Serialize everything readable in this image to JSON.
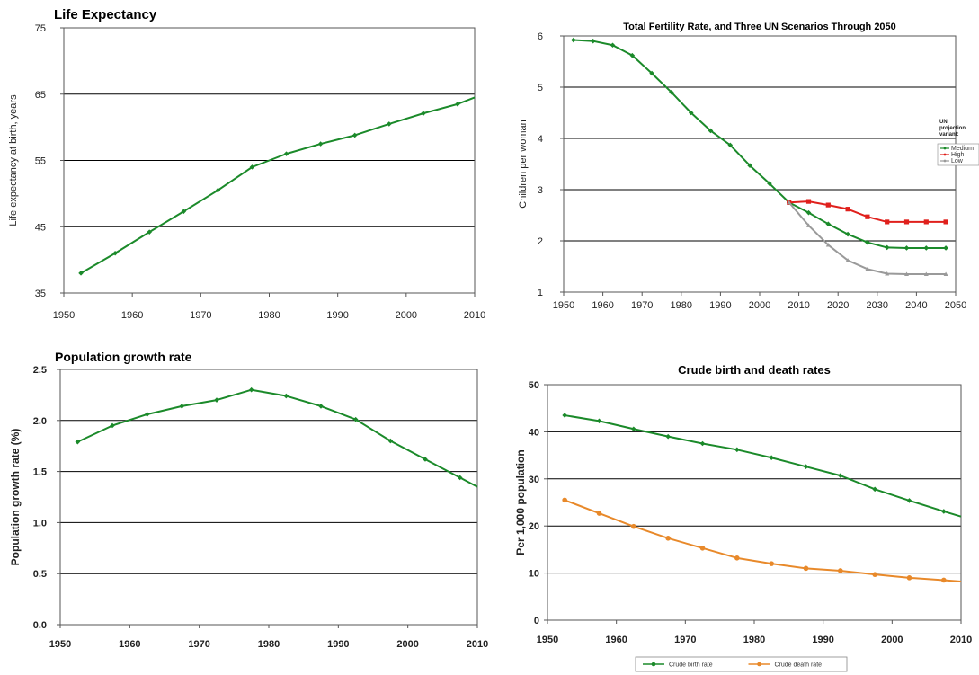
{
  "colors": {
    "green": "#1b8a2a",
    "red": "#e0201c",
    "gray": "#9a9a9a",
    "orange": "#e8892a",
    "gridline": "#000000",
    "frame": "#555555"
  },
  "chart_data": [
    {
      "type": "line",
      "title": "Life Expectancy",
      "xlabel": "",
      "ylabel": "Life expectancy at birth, years",
      "xlim": [
        1950,
        2010
      ],
      "ylim": [
        35,
        75
      ],
      "x_ticks": [
        "1950",
        "1960",
        "1970",
        "1980",
        "1990",
        "2000",
        "2010"
      ],
      "y_ticks": [
        "35",
        "45",
        "55",
        "65",
        "75"
      ],
      "grid": "horizontal",
      "series": [
        {
          "color": "#1b8a2a",
          "points": [
            [
              1952.5,
              38
            ],
            [
              1957.5,
              41
            ],
            [
              1962.5,
              44.2
            ],
            [
              1967.5,
              47.3
            ],
            [
              1972.5,
              50.5
            ],
            [
              1977.5,
              54
            ],
            [
              1982.5,
              56
            ],
            [
              1987.5,
              57.5
            ],
            [
              1992.5,
              58.8
            ],
            [
              1997.5,
              60.5
            ],
            [
              2002.5,
              62.1
            ],
            [
              2007.5,
              63.5
            ],
            [
              2010,
              64.5
            ]
          ],
          "markers": 12
        }
      ]
    },
    {
      "type": "line",
      "title": "Total Fertility Rate, and Three UN Scenarios Through 2050",
      "xlabel": "",
      "ylabel": "Children per woman",
      "xlim": [
        1950,
        2050
      ],
      "ylim": [
        1,
        6
      ],
      "x_ticks": [
        "1950",
        "1960",
        "1970",
        "1980",
        "1990",
        "2000",
        "2010",
        "2020",
        "2030",
        "2040",
        "2050"
      ],
      "y_ticks": [
        "1",
        "2",
        "3",
        "4",
        "5",
        "6"
      ],
      "grid": "horizontal",
      "legend_title": "UN projection variant:",
      "legend": "right",
      "series": [
        {
          "name": "Medium",
          "color": "#1b8a2a",
          "points": [
            [
              1952.5,
              5.92
            ],
            [
              1957.5,
              5.9
            ],
            [
              1962.5,
              5.82
            ],
            [
              1967.5,
              5.62
            ],
            [
              1972.5,
              5.27
            ],
            [
              1977.5,
              4.9
            ],
            [
              1982.5,
              4.5
            ],
            [
              1987.5,
              4.15
            ],
            [
              1992.5,
              3.87
            ],
            [
              1997.5,
              3.47
            ],
            [
              2002.5,
              3.12
            ],
            [
              2007.5,
              2.75
            ],
            [
              2012.5,
              2.55
            ],
            [
              2017.5,
              2.33
            ],
            [
              2022.5,
              2.13
            ],
            [
              2027.5,
              1.97
            ],
            [
              2032.5,
              1.87
            ],
            [
              2037.5,
              1.86
            ],
            [
              2042.5,
              1.86
            ],
            [
              2047.5,
              1.86
            ]
          ],
          "markers": 20
        },
        {
          "name": "High",
          "color": "#e0201c",
          "points": [
            [
              2007.5,
              2.75
            ],
            [
              2012.5,
              2.77
            ],
            [
              2017.5,
              2.7
            ],
            [
              2022.5,
              2.62
            ],
            [
              2027.5,
              2.47
            ],
            [
              2032.5,
              2.37
            ],
            [
              2037.5,
              2.37
            ],
            [
              2042.5,
              2.37
            ],
            [
              2047.5,
              2.37
            ]
          ],
          "markers": 9
        },
        {
          "name": "Low",
          "color": "#9a9a9a",
          "points": [
            [
              2007.5,
              2.75
            ],
            [
              2012.5,
              2.3
            ],
            [
              2017.5,
              1.92
            ],
            [
              2022.5,
              1.62
            ],
            [
              2027.5,
              1.45
            ],
            [
              2032.5,
              1.36
            ],
            [
              2037.5,
              1.35
            ],
            [
              2042.5,
              1.35
            ],
            [
              2047.5,
              1.35
            ]
          ],
          "markers": 9
        }
      ]
    },
    {
      "type": "line",
      "title": "Population growth rate",
      "xlabel": "",
      "ylabel": "Population growth rate (%)",
      "xlim": [
        1950,
        2010
      ],
      "ylim": [
        0,
        2.5
      ],
      "x_ticks": [
        "1950",
        "1960",
        "1970",
        "1980",
        "1990",
        "2000",
        "2010"
      ],
      "y_ticks": [
        "0.0",
        "0.5",
        "1.0",
        "1.5",
        "2.0",
        "2.5"
      ],
      "grid": "horizontal",
      "series": [
        {
          "color": "#1b8a2a",
          "points": [
            [
              1952.5,
              1.79
            ],
            [
              1957.5,
              1.95
            ],
            [
              1962.5,
              2.06
            ],
            [
              1967.5,
              2.14
            ],
            [
              1972.5,
              2.2
            ],
            [
              1977.5,
              2.3
            ],
            [
              1982.5,
              2.24
            ],
            [
              1987.5,
              2.14
            ],
            [
              1992.5,
              2.01
            ],
            [
              1997.5,
              1.8
            ],
            [
              2002.5,
              1.62
            ],
            [
              2007.5,
              1.44
            ],
            [
              2010,
              1.35
            ]
          ],
          "markers": 12
        }
      ]
    },
    {
      "type": "line",
      "title": "Crude birth and death rates",
      "xlabel": "",
      "ylabel": "Per 1,000 population",
      "xlim": [
        1950,
        2010
      ],
      "ylim": [
        0,
        50
      ],
      "x_ticks": [
        "1950",
        "1960",
        "1970",
        "1980",
        "1990",
        "2000",
        "2010"
      ],
      "y_ticks": [
        "0",
        "10",
        "20",
        "30",
        "40",
        "50"
      ],
      "grid": "horizontal",
      "legend": "bottom",
      "series": [
        {
          "name": "Crude birth rate",
          "color": "#1b8a2a",
          "points": [
            [
              1952.5,
              43.5
            ],
            [
              1957.5,
              42.3
            ],
            [
              1962.5,
              40.6
            ],
            [
              1967.5,
              39
            ],
            [
              1972.5,
              37.5
            ],
            [
              1977.5,
              36.2
            ],
            [
              1982.5,
              34.5
            ],
            [
              1987.5,
              32.6
            ],
            [
              1992.5,
              30.7
            ],
            [
              1997.5,
              27.8
            ],
            [
              2002.5,
              25.4
            ],
            [
              2007.5,
              23.1
            ],
            [
              2010,
              22
            ]
          ],
          "markers": 12
        },
        {
          "name": "Crude death rate",
          "color": "#e8892a",
          "points": [
            [
              1952.5,
              25.5
            ],
            [
              1957.5,
              22.7
            ],
            [
              1962.5,
              19.9
            ],
            [
              1967.5,
              17.4
            ],
            [
              1972.5,
              15.3
            ],
            [
              1977.5,
              13.2
            ],
            [
              1982.5,
              12
            ],
            [
              1987.5,
              11
            ],
            [
              1992.5,
              10.5
            ],
            [
              1997.5,
              9.7
            ],
            [
              2002.5,
              9
            ],
            [
              2007.5,
              8.5
            ],
            [
              2010,
              8.2
            ]
          ],
          "markers": 12
        }
      ]
    }
  ]
}
